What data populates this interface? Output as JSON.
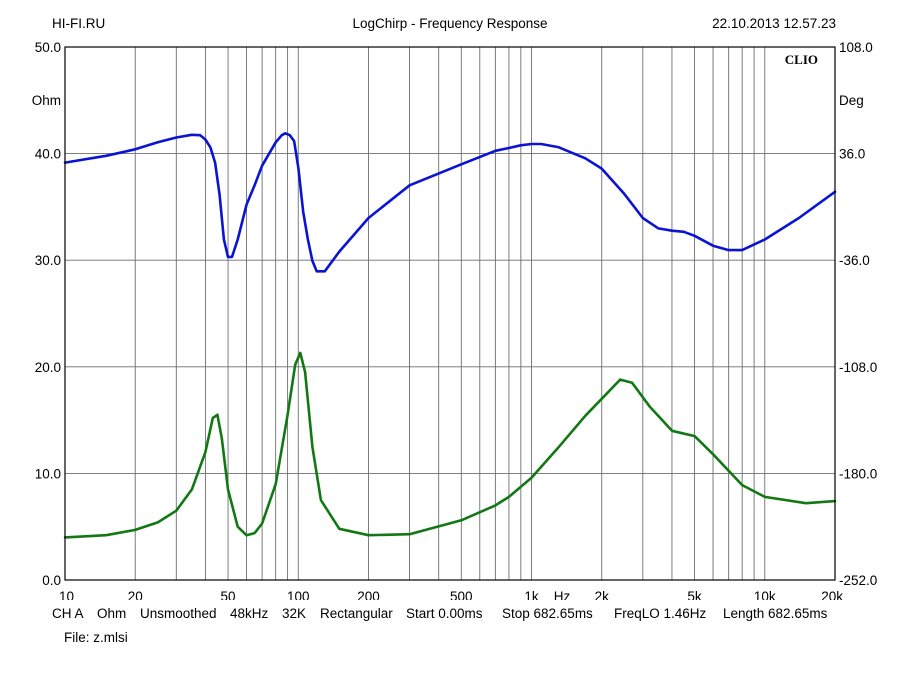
{
  "header": {
    "left": "HI-FI.RU",
    "title": "LogChirp - Frequency Response",
    "datetime": "22.10.2013 12.57.23"
  },
  "footer": {
    "items": [
      "CH A",
      "Ohm",
      "Unsmoothed",
      "48kHz",
      "32K",
      "Rectangular",
      "Start 0.00ms",
      "Stop 682.65ms",
      "FreqLO 1.46Hz",
      "Length 682.65ms"
    ],
    "file": "File: z.mlsi"
  },
  "colors": {
    "magnitude": "#0a14d2",
    "phase": "#127814",
    "grid": "#6e6e6e"
  },
  "chart_data": {
    "type": "line",
    "title": "LogChirp - Frequency Response",
    "brand": "CLIO",
    "x_scale": "log",
    "xlim": [
      10,
      20000
    ],
    "x_tick_values": [
      10,
      20,
      50,
      100,
      200,
      500,
      1000,
      2000,
      5000,
      10000,
      20000
    ],
    "x_tick_labels": [
      "10",
      "20",
      "50",
      "100",
      "200",
      "500",
      "1k",
      "2k",
      "5k",
      "10k",
      "20k"
    ],
    "x_unit": "Hz",
    "y_left": {
      "unit": "Ohm",
      "lim": [
        0,
        50
      ],
      "ticks": [
        "0.0",
        "10.0",
        "20.0",
        "30.0",
        "40.0",
        "50.0"
      ]
    },
    "y_right": {
      "unit": "Deg",
      "lim": [
        -252,
        108
      ],
      "ticks": [
        "-252.0",
        "-180.0",
        "-108.0",
        "-36.0",
        "36.0",
        "108.0"
      ]
    },
    "grid": true,
    "series": [
      {
        "axis": "right",
        "color": "#0a14d2",
        "points": [
          [
            10,
            29.9
          ],
          [
            15,
            34.5
          ],
          [
            20,
            38.9
          ],
          [
            25,
            43.6
          ],
          [
            30,
            46.9
          ],
          [
            35,
            48.7
          ],
          [
            38,
            48.4
          ],
          [
            40,
            45.5
          ],
          [
            42,
            40.2
          ],
          [
            44,
            29.9
          ],
          [
            46,
            8.1
          ],
          [
            48,
            -22.0
          ],
          [
            50,
            -33.8
          ],
          [
            52,
            -33.8
          ],
          [
            55,
            -22.0
          ],
          [
            60,
            1.4
          ],
          [
            65,
            14.6
          ],
          [
            70,
            27.8
          ],
          [
            80,
            43.6
          ],
          [
            85,
            48.4
          ],
          [
            88,
            49.7
          ],
          [
            92,
            48.4
          ],
          [
            96,
            44.5
          ],
          [
            100,
            26.7
          ],
          [
            105,
            -3.4
          ],
          [
            110,
            -22.0
          ],
          [
            115,
            -36.5
          ],
          [
            120,
            -43.5
          ],
          [
            130,
            -43.5
          ],
          [
            150,
            -30.2
          ],
          [
            200,
            -7.5
          ],
          [
            300,
            14.6
          ],
          [
            500,
            28.8
          ],
          [
            700,
            37.9
          ],
          [
            800,
            39.8
          ],
          [
            900,
            41.6
          ],
          [
            1000,
            42.5
          ],
          [
            1100,
            42.5
          ],
          [
            1300,
            40.4
          ],
          [
            1700,
            32.8
          ],
          [
            2000,
            25.9
          ],
          [
            2500,
            8.8
          ],
          [
            3000,
            -7.5
          ],
          [
            3500,
            -14.5
          ],
          [
            4000,
            -16.1
          ],
          [
            4500,
            -16.8
          ],
          [
            5000,
            -19.5
          ],
          [
            6000,
            -26.2
          ],
          [
            7000,
            -29.2
          ],
          [
            8000,
            -29.2
          ],
          [
            10000,
            -22.0
          ],
          [
            14000,
            -7.5
          ],
          [
            20000,
            10.2
          ]
        ]
      },
      {
        "axis": "left",
        "color": "#127814",
        "points": [
          [
            10,
            4.0
          ],
          [
            15,
            4.2
          ],
          [
            20,
            4.7
          ],
          [
            25,
            5.4
          ],
          [
            30,
            6.5
          ],
          [
            35,
            8.5
          ],
          [
            40,
            12.0
          ],
          [
            43,
            15.2
          ],
          [
            45,
            15.5
          ],
          [
            47,
            13.3
          ],
          [
            50,
            8.5
          ],
          [
            55,
            5.0
          ],
          [
            60,
            4.2
          ],
          [
            65,
            4.4
          ],
          [
            70,
            5.3
          ],
          [
            80,
            9.0
          ],
          [
            90,
            15.5
          ],
          [
            97,
            20.2
          ],
          [
            102,
            21.3
          ],
          [
            107,
            19.5
          ],
          [
            115,
            12.5
          ],
          [
            125,
            7.5
          ],
          [
            150,
            4.8
          ],
          [
            200,
            4.2
          ],
          [
            300,
            4.3
          ],
          [
            500,
            5.6
          ],
          [
            700,
            7.0
          ],
          [
            800,
            7.8
          ],
          [
            1000,
            9.6
          ],
          [
            1300,
            12.4
          ],
          [
            1700,
            15.4
          ],
          [
            2000,
            17.0
          ],
          [
            2400,
            18.8
          ],
          [
            2700,
            18.5
          ],
          [
            3200,
            16.3
          ],
          [
            4000,
            14.0
          ],
          [
            5000,
            13.5
          ],
          [
            6000,
            11.8
          ],
          [
            8000,
            8.9
          ],
          [
            10000,
            7.8
          ],
          [
            15000,
            7.2
          ],
          [
            20000,
            7.4
          ]
        ]
      }
    ]
  }
}
